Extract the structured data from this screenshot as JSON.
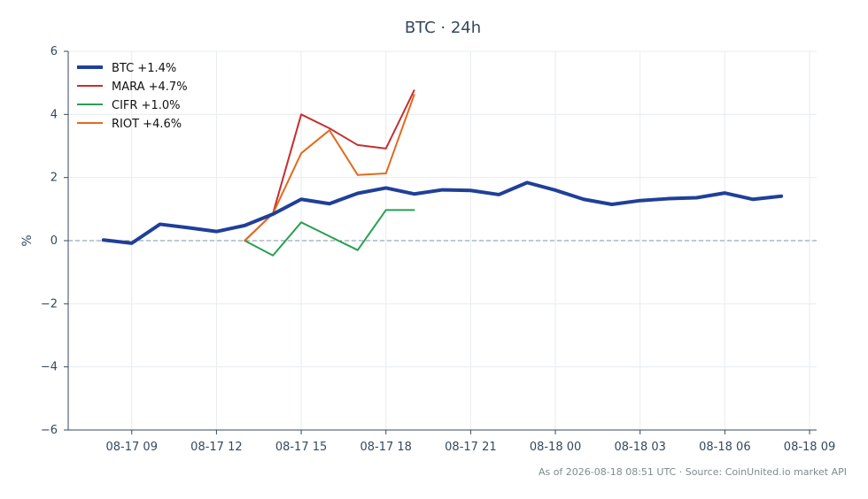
{
  "chart_data": {
    "type": "line",
    "title": "BTC · 24h",
    "ylabel": "%",
    "xlabel": "",
    "ylim": [
      -6,
      6
    ],
    "yticks": [
      6,
      4,
      2,
      0,
      -2,
      -4,
      -6
    ],
    "ytick_labels": [
      "6",
      "4",
      "2",
      "0",
      "−2",
      "−4",
      "−6"
    ],
    "xlim": [
      "2026-08-17 06:45",
      "2026-08-18 09:15"
    ],
    "xticks": [
      "2026-08-17 09:00",
      "2026-08-17 12:00",
      "2026-08-17 15:00",
      "2026-08-17 18:00",
      "2026-08-17 21:00",
      "2026-08-18 00:00",
      "2026-08-18 03:00",
      "2026-08-18 06:00",
      "2026-08-18 09:00"
    ],
    "xtick_labels": [
      "08-17 09",
      "08-17 12",
      "08-17 15",
      "08-17 18",
      "08-17 21",
      "08-18 00",
      "08-18 03",
      "08-18 06",
      "08-18 09"
    ],
    "grid": true,
    "zero_line": true,
    "legend_position": "top-left",
    "series": [
      {
        "name": "BTC +1.4%",
        "color": "#1f3f99",
        "width": 4,
        "x": [
          "2026-08-17 08:00",
          "2026-08-17 09:00",
          "2026-08-17 10:00",
          "2026-08-17 11:00",
          "2026-08-17 12:00",
          "2026-08-17 13:00",
          "2026-08-17 14:00",
          "2026-08-17 15:00",
          "2026-08-17 16:00",
          "2026-08-17 17:00",
          "2026-08-17 18:00",
          "2026-08-17 19:00",
          "2026-08-17 20:00",
          "2026-08-17 21:00",
          "2026-08-17 22:00",
          "2026-08-17 23:00",
          "2026-08-18 00:00",
          "2026-08-18 01:00",
          "2026-08-18 02:00",
          "2026-08-18 03:00",
          "2026-08-18 04:00",
          "2026-08-18 05:00",
          "2026-08-18 06:00",
          "2026-08-18 07:00",
          "2026-08-18 08:00"
        ],
        "values": [
          0.02,
          -0.08,
          0.52,
          0.41,
          0.29,
          0.48,
          0.84,
          1.31,
          1.17,
          1.5,
          1.67,
          1.48,
          1.61,
          1.59,
          1.46,
          1.84,
          1.6,
          1.31,
          1.15,
          1.27,
          1.33,
          1.36,
          1.51,
          1.31,
          1.41
        ]
      },
      {
        "name": "MARA +4.7%",
        "color": "#c62f2f",
        "width": 2,
        "x": [
          "2026-08-17 13:00",
          "2026-08-17 14:00",
          "2026-08-17 15:00",
          "2026-08-17 16:00",
          "2026-08-17 17:00",
          "2026-08-17 18:00",
          "2026-08-17 19:00"
        ],
        "values": [
          0.0,
          0.86,
          4.0,
          3.56,
          3.03,
          2.92,
          4.76
        ]
      },
      {
        "name": "CIFR +1.0%",
        "color": "#27a052",
        "width": 2,
        "x": [
          "2026-08-17 13:00",
          "2026-08-17 14:00",
          "2026-08-17 15:00",
          "2026-08-17 16:00",
          "2026-08-17 17:00",
          "2026-08-17 18:00",
          "2026-08-17 19:00"
        ],
        "values": [
          0.0,
          -0.47,
          0.58,
          0.14,
          -0.3,
          0.97,
          0.97
        ]
      },
      {
        "name": "RIOT +4.6%",
        "color": "#e06b1f",
        "width": 2,
        "x": [
          "2026-08-17 13:00",
          "2026-08-17 14:00",
          "2026-08-17 15:00",
          "2026-08-17 16:00",
          "2026-08-17 17:00",
          "2026-08-17 18:00",
          "2026-08-17 19:00"
        ],
        "values": [
          0.0,
          0.86,
          2.77,
          3.5,
          2.08,
          2.13,
          4.62
        ]
      }
    ],
    "footer": "As of 2026-08-18 08:51 UTC · Source: CoinUnited.io market API"
  }
}
